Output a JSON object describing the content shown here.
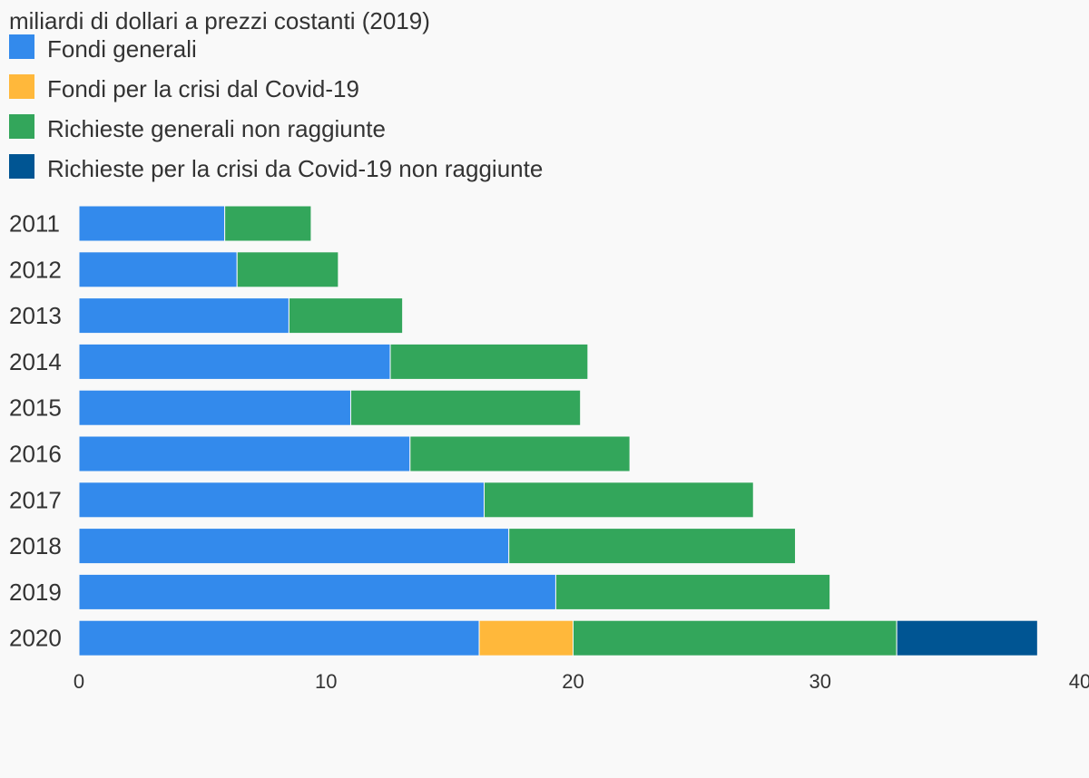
{
  "chart_data": {
    "type": "bar",
    "orientation": "horizontal",
    "stacked": true,
    "unit_label": "miliardi di dollari a prezzi costanti (2019)",
    "categories": [
      "2011",
      "2012",
      "2013",
      "2014",
      "2015",
      "2016",
      "2017",
      "2018",
      "2019",
      "2020"
    ],
    "series": [
      {
        "name": "Fondi generali",
        "color": "#338aec",
        "values": [
          5.9,
          6.4,
          8.5,
          12.6,
          11.0,
          13.4,
          16.4,
          17.4,
          19.3,
          16.2
        ]
      },
      {
        "name": "Fondi per la crisi dal Covid-19",
        "color": "#ffb83b",
        "values": [
          0,
          0,
          0,
          0,
          0,
          0,
          0,
          0,
          0,
          3.8
        ]
      },
      {
        "name": "Richieste generali non raggiunte",
        "color": "#33a65b",
        "values": [
          3.5,
          4.1,
          4.6,
          8.0,
          9.3,
          8.9,
          10.9,
          11.6,
          11.1,
          13.1
        ]
      },
      {
        "name": "Richieste per la crisi da Covid-19 non raggiunte",
        "color": "#005593",
        "values": [
          0,
          0,
          0,
          0,
          0,
          0,
          0,
          0,
          0,
          5.7
        ]
      }
    ],
    "xlim": [
      0,
      40
    ],
    "xticks": [
      "0",
      "10",
      "20",
      "30",
      "40"
    ],
    "grid": false,
    "legend_position": "top-left"
  }
}
